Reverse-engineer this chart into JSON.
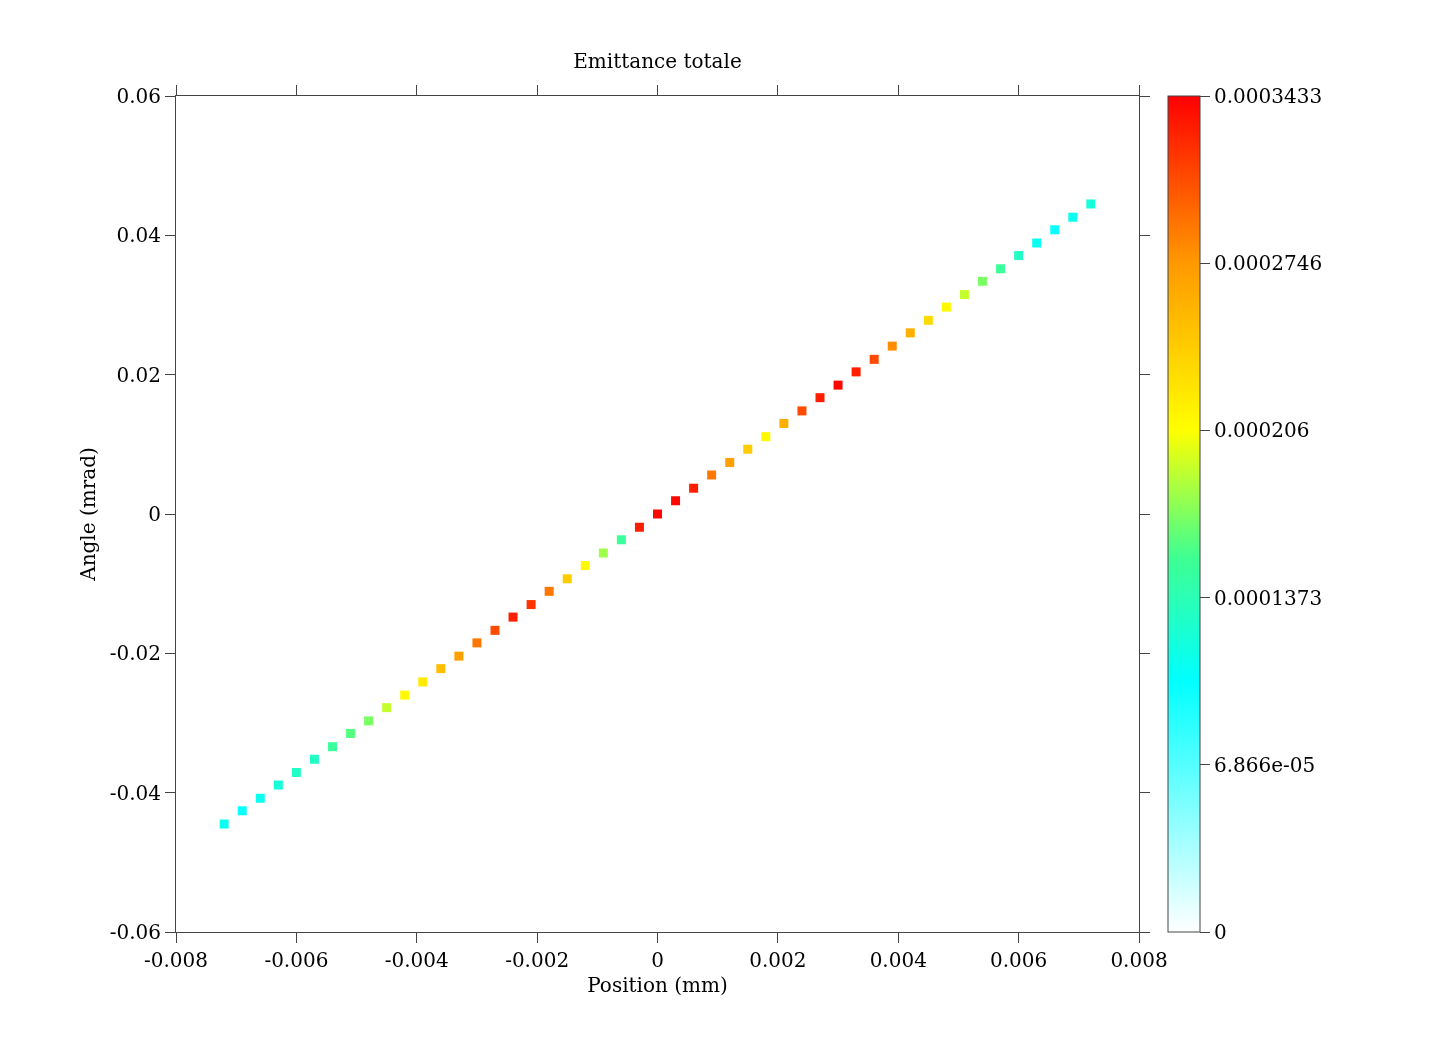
{
  "chart_data": {
    "type": "scatter",
    "title": "Emittance totale",
    "xlabel": "Position (mm)",
    "ylabel": "Angle (mrad)",
    "x": [
      -0.0072,
      -0.0069,
      -0.0066,
      -0.0063,
      -0.006,
      -0.0057,
      -0.0054,
      -0.0051,
      -0.0048,
      -0.0045,
      -0.0042,
      -0.0039,
      -0.0036,
      -0.0033,
      -0.003,
      -0.0027,
      -0.0024,
      -0.0021,
      -0.0018,
      -0.0015,
      -0.0012,
      -0.0009,
      -0.0006,
      -0.0003,
      0,
      0.0003,
      0.0006,
      0.0009,
      0.0012,
      0.0015,
      0.0018,
      0.0021,
      0.0024,
      0.0027,
      0.003,
      0.0033,
      0.0036,
      0.0039,
      0.0042,
      0.0045,
      0.0048,
      0.0051,
      0.0054,
      0.0057,
      0.006,
      0.0063,
      0.0066,
      0.0069,
      0.0072
    ],
    "values": [
      -0.0445,
      -0.0426,
      -0.0408,
      -0.0389,
      -0.0371,
      -0.0352,
      -0.0334,
      -0.0315,
      -0.0297,
      -0.0278,
      -0.026,
      -0.0241,
      -0.0222,
      -0.0204,
      -0.0185,
      -0.0167,
      -0.0148,
      -0.013,
      -0.0111,
      -0.0093,
      -0.0074,
      -0.0056,
      -0.0037,
      -0.0019,
      0,
      0.0019,
      0.0037,
      0.0056,
      0.0074,
      0.0093,
      0.0111,
      0.013,
      0.0148,
      0.0167,
      0.0185,
      0.0204,
      0.0222,
      0.0241,
      0.026,
      0.0278,
      0.0297,
      0.0315,
      0.0334,
      0.0352,
      0.0371,
      0.0389,
      0.0408,
      0.0426,
      0.0445
    ],
    "cvalues": [
      0.00011,
      0.0001,
      0.00011,
      0.00012,
      0.00013,
      0.00013,
      0.00015,
      0.00016,
      0.00017,
      0.00019,
      0.00021,
      0.00022,
      0.00025,
      0.00027,
      0.00029,
      0.00031,
      0.00033,
      0.00032,
      0.00029,
      0.00024,
      0.00021,
      0.00018,
      0.00015,
      0.00033,
      0.00034,
      0.00034,
      0.00033,
      0.00029,
      0.00027,
      0.00024,
      0.00021,
      0.00026,
      0.00031,
      0.00033,
      0.00034,
      0.00033,
      0.00031,
      0.00028,
      0.00026,
      0.00023,
      0.00021,
      0.00019,
      0.00017,
      0.00015,
      0.00013,
      0.00011,
      0.0001,
      0.00011,
      0.00012
    ],
    "marker": "square",
    "xlim": [
      -0.008,
      0.008
    ],
    "xticks": [
      -0.008,
      -0.006,
      -0.004,
      -0.002,
      0,
      0.002,
      0.004,
      0.006,
      0.008
    ],
    "ylim": [
      -0.06,
      0.06
    ],
    "yticks": [
      -0.06,
      -0.04,
      -0.02,
      0,
      0.02,
      0.04,
      0.06
    ],
    "clim": [
      0,
      0.0003433
    ],
    "cticks": [
      0,
      {
        "value": 6.866e-05,
        "label": "6.866e-05"
      },
      0.0001373,
      0.000206,
      0.0002746,
      0.0003433
    ]
  }
}
